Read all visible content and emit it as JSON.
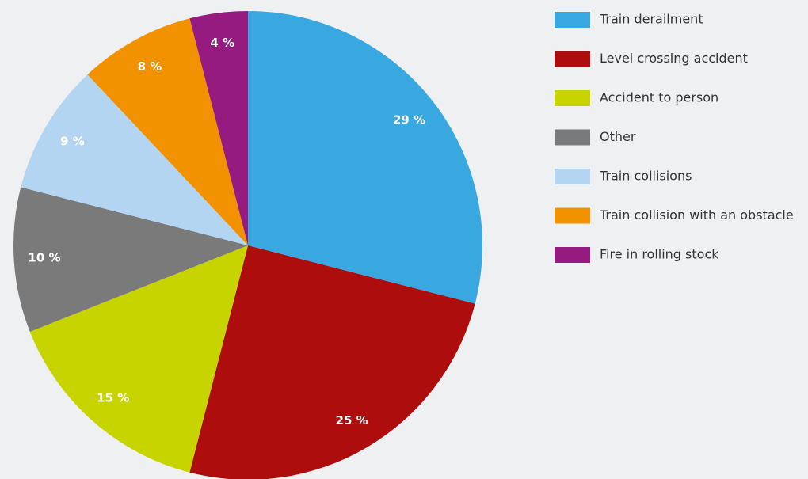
{
  "chart_data": {
    "type": "pie",
    "categories": [
      "Train derailment",
      "Level crossing accident",
      "Accident to person",
      "Other",
      "Train collisions",
      "Train collision with an obstacle",
      "Fire in rolling stock"
    ],
    "values": [
      29,
      25,
      15,
      10,
      9,
      8,
      4
    ],
    "value_labels": [
      "29 %",
      "25 %",
      "15 %",
      "10 %",
      "9 %",
      "8 %",
      "4 %"
    ],
    "colors": [
      "#3aa8e0",
      "#ad0d0d",
      "#c8d400",
      "#7a7a7a",
      "#b3d5f2",
      "#f39200",
      "#951b81"
    ],
    "legend": "right"
  }
}
